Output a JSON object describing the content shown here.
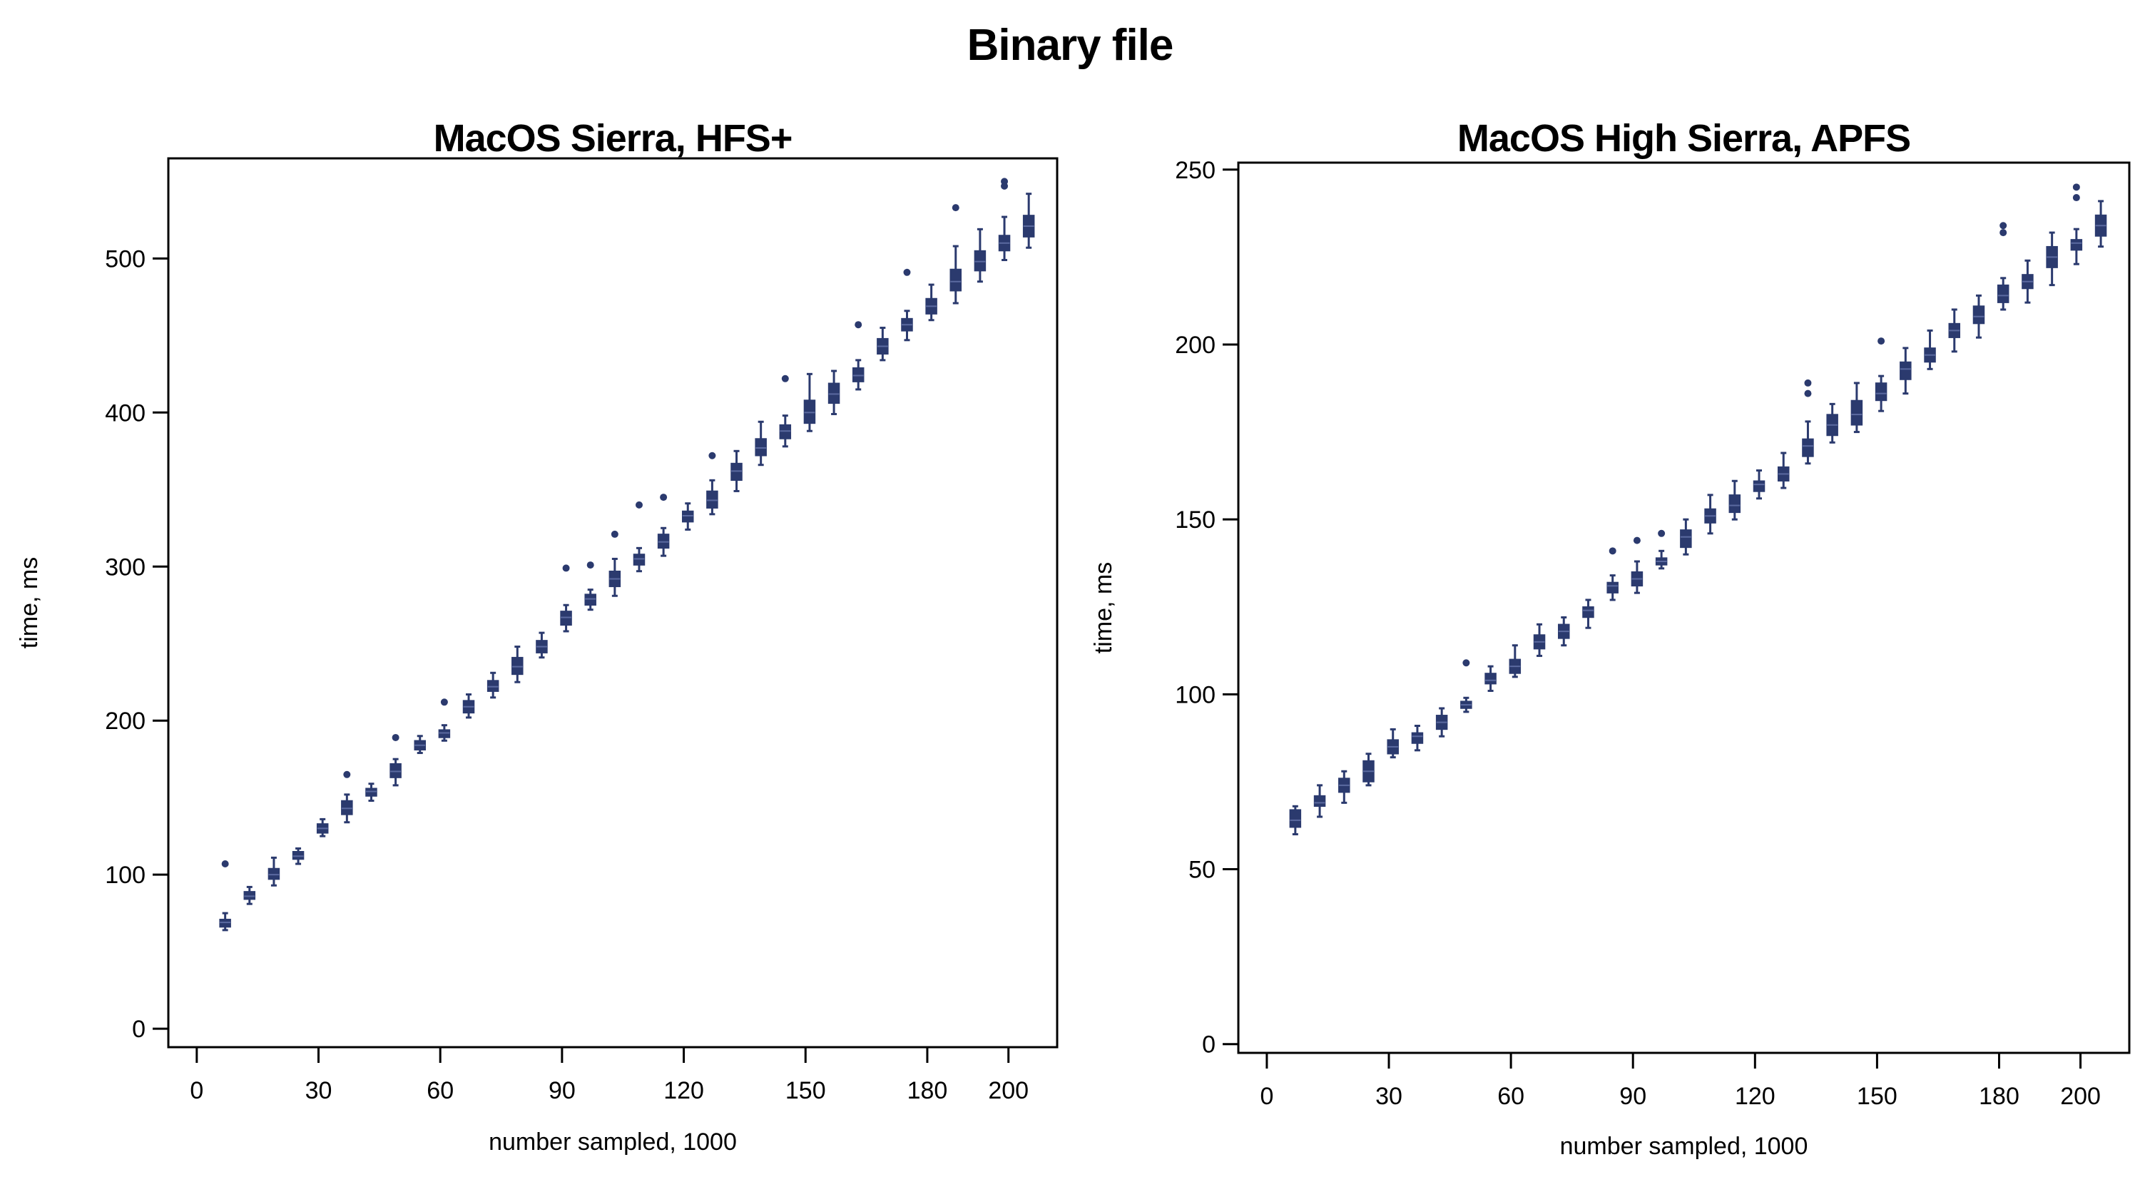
{
  "title": "Binary file",
  "chart_data": [
    {
      "type": "box",
      "title": "MacOS Sierra, HFS+",
      "xlabel": "number sampled, 1000",
      "ylabel": "time, ms",
      "xlim": [
        -7,
        212
      ],
      "ylim": [
        -12,
        565
      ],
      "xticks": [
        0,
        30,
        60,
        90,
        120,
        150,
        180,
        200
      ],
      "yticks": [
        0,
        100,
        200,
        300,
        400,
        500
      ],
      "color": "#2b3a6e",
      "boxes": [
        {
          "x": 7,
          "q1": 66,
          "median": 69,
          "q3": 71,
          "whisker_low": 64,
          "whisker_high": 75,
          "outliers": [
            107
          ]
        },
        {
          "x": 13,
          "q1": 84,
          "median": 86,
          "q3": 89,
          "whisker_low": 81,
          "whisker_high": 92,
          "outliers": []
        },
        {
          "x": 19,
          "q1": 97,
          "median": 100,
          "q3": 104,
          "whisker_low": 93,
          "whisker_high": 111,
          "outliers": []
        },
        {
          "x": 25,
          "q1": 110,
          "median": 112,
          "q3": 115,
          "whisker_low": 107,
          "whisker_high": 117,
          "outliers": []
        },
        {
          "x": 31,
          "q1": 127,
          "median": 130,
          "q3": 133,
          "whisker_low": 125,
          "whisker_high": 136,
          "outliers": []
        },
        {
          "x": 37,
          "q1": 139,
          "median": 143,
          "q3": 148,
          "whisker_low": 134,
          "whisker_high": 152,
          "outliers": [
            165
          ]
        },
        {
          "x": 43,
          "q1": 151,
          "median": 154,
          "q3": 156,
          "whisker_low": 148,
          "whisker_high": 159,
          "outliers": []
        },
        {
          "x": 49,
          "q1": 163,
          "median": 167,
          "q3": 172,
          "whisker_low": 158,
          "whisker_high": 175,
          "outliers": [
            189
          ]
        },
        {
          "x": 55,
          "q1": 181,
          "median": 184,
          "q3": 187,
          "whisker_low": 179,
          "whisker_high": 190,
          "outliers": []
        },
        {
          "x": 61,
          "q1": 189,
          "median": 192,
          "q3": 194,
          "whisker_low": 187,
          "whisker_high": 197,
          "outliers": [
            212
          ]
        },
        {
          "x": 67,
          "q1": 205,
          "median": 209,
          "q3": 213,
          "whisker_low": 202,
          "whisker_high": 217,
          "outliers": []
        },
        {
          "x": 73,
          "q1": 219,
          "median": 222,
          "q3": 226,
          "whisker_low": 215,
          "whisker_high": 231,
          "outliers": []
        },
        {
          "x": 79,
          "q1": 230,
          "median": 235,
          "q3": 241,
          "whisker_low": 225,
          "whisker_high": 248,
          "outliers": []
        },
        {
          "x": 85,
          "q1": 244,
          "median": 248,
          "q3": 252,
          "whisker_low": 241,
          "whisker_high": 257,
          "outliers": []
        },
        {
          "x": 91,
          "q1": 262,
          "median": 267,
          "q3": 271,
          "whisker_low": 258,
          "whisker_high": 275,
          "outliers": [
            299
          ]
        },
        {
          "x": 97,
          "q1": 275,
          "median": 279,
          "q3": 282,
          "whisker_low": 272,
          "whisker_high": 285,
          "outliers": [
            301
          ]
        },
        {
          "x": 103,
          "q1": 287,
          "median": 292,
          "q3": 297,
          "whisker_low": 281,
          "whisker_high": 305,
          "outliers": [
            321
          ]
        },
        {
          "x": 109,
          "q1": 301,
          "median": 305,
          "q3": 308,
          "whisker_low": 297,
          "whisker_high": 312,
          "outliers": [
            340
          ]
        },
        {
          "x": 115,
          "q1": 312,
          "median": 316,
          "q3": 321,
          "whisker_low": 307,
          "whisker_high": 325,
          "outliers": [
            345
          ]
        },
        {
          "x": 121,
          "q1": 329,
          "median": 333,
          "q3": 336,
          "whisker_low": 324,
          "whisker_high": 341,
          "outliers": []
        },
        {
          "x": 127,
          "q1": 338,
          "median": 343,
          "q3": 349,
          "whisker_low": 334,
          "whisker_high": 356,
          "outliers": [
            372
          ]
        },
        {
          "x": 133,
          "q1": 356,
          "median": 362,
          "q3": 367,
          "whisker_low": 349,
          "whisker_high": 375,
          "outliers": []
        },
        {
          "x": 139,
          "q1": 372,
          "median": 377,
          "q3": 383,
          "whisker_low": 366,
          "whisker_high": 394,
          "outliers": []
        },
        {
          "x": 145,
          "q1": 383,
          "median": 388,
          "q3": 392,
          "whisker_low": 378,
          "whisker_high": 398,
          "outliers": [
            422
          ]
        },
        {
          "x": 151,
          "q1": 393,
          "median": 400,
          "q3": 408,
          "whisker_low": 388,
          "whisker_high": 425,
          "outliers": []
        },
        {
          "x": 157,
          "q1": 406,
          "median": 412,
          "q3": 419,
          "whisker_low": 399,
          "whisker_high": 427,
          "outliers": []
        },
        {
          "x": 163,
          "q1": 420,
          "median": 424,
          "q3": 429,
          "whisker_low": 415,
          "whisker_high": 434,
          "outliers": [
            457
          ]
        },
        {
          "x": 169,
          "q1": 438,
          "median": 443,
          "q3": 448,
          "whisker_low": 434,
          "whisker_high": 455,
          "outliers": []
        },
        {
          "x": 175,
          "q1": 453,
          "median": 457,
          "q3": 461,
          "whisker_low": 447,
          "whisker_high": 466,
          "outliers": [
            491
          ]
        },
        {
          "x": 181,
          "q1": 464,
          "median": 469,
          "q3": 474,
          "whisker_low": 460,
          "whisker_high": 483,
          "outliers": []
        },
        {
          "x": 187,
          "q1": 479,
          "median": 485,
          "q3": 493,
          "whisker_low": 471,
          "whisker_high": 508,
          "outliers": [
            533
          ]
        },
        {
          "x": 193,
          "q1": 492,
          "median": 498,
          "q3": 505,
          "whisker_low": 485,
          "whisker_high": 519,
          "outliers": []
        },
        {
          "x": 199,
          "q1": 505,
          "median": 510,
          "q3": 515,
          "whisker_low": 499,
          "whisker_high": 527,
          "outliers": [
            547,
            550
          ]
        },
        {
          "x": 205,
          "q1": 514,
          "median": 521,
          "q3": 528,
          "whisker_low": 507,
          "whisker_high": 542,
          "outliers": []
        }
      ]
    },
    {
      "type": "box",
      "title": "MacOS High Sierra, APFS",
      "xlabel": "number sampled, 1000",
      "ylabel": "time, ms",
      "xlim": [
        -7,
        212
      ],
      "ylim": [
        -2.5,
        252
      ],
      "xticks": [
        0,
        30,
        60,
        90,
        120,
        150,
        180,
        200
      ],
      "yticks": [
        0,
        50,
        100,
        150,
        200,
        250
      ],
      "color": "#2b3a6e",
      "boxes": [
        {
          "x": 7,
          "q1": 62,
          "median": 64,
          "q3": 67,
          "whisker_low": 60,
          "whisker_high": 68,
          "outliers": []
        },
        {
          "x": 13,
          "q1": 68,
          "median": 69,
          "q3": 71,
          "whisker_low": 65,
          "whisker_high": 74,
          "outliers": []
        },
        {
          "x": 19,
          "q1": 72,
          "median": 74,
          "q3": 76,
          "whisker_low": 69,
          "whisker_high": 78,
          "outliers": []
        },
        {
          "x": 25,
          "q1": 75,
          "median": 78,
          "q3": 81,
          "whisker_low": 74,
          "whisker_high": 83,
          "outliers": []
        },
        {
          "x": 31,
          "q1": 83,
          "median": 85,
          "q3": 87,
          "whisker_low": 82,
          "whisker_high": 90,
          "outliers": []
        },
        {
          "x": 37,
          "q1": 86,
          "median": 88,
          "q3": 89,
          "whisker_low": 84,
          "whisker_high": 91,
          "outliers": []
        },
        {
          "x": 43,
          "q1": 90,
          "median": 92,
          "q3": 94,
          "whisker_low": 88,
          "whisker_high": 96,
          "outliers": []
        },
        {
          "x": 49,
          "q1": 96,
          "median": 97,
          "q3": 98,
          "whisker_low": 95,
          "whisker_high": 99,
          "outliers": [
            109
          ]
        },
        {
          "x": 55,
          "q1": 103,
          "median": 104,
          "q3": 106,
          "whisker_low": 101,
          "whisker_high": 108,
          "outliers": []
        },
        {
          "x": 61,
          "q1": 106,
          "median": 108,
          "q3": 110,
          "whisker_low": 105,
          "whisker_high": 114,
          "outliers": []
        },
        {
          "x": 67,
          "q1": 113,
          "median": 115,
          "q3": 117,
          "whisker_low": 111,
          "whisker_high": 120,
          "outliers": []
        },
        {
          "x": 73,
          "q1": 116,
          "median": 118,
          "q3": 120,
          "whisker_low": 114,
          "whisker_high": 122,
          "outliers": []
        },
        {
          "x": 79,
          "q1": 122,
          "median": 124,
          "q3": 125,
          "whisker_low": 119,
          "whisker_high": 127,
          "outliers": []
        },
        {
          "x": 85,
          "q1": 129,
          "median": 131,
          "q3": 132,
          "whisker_low": 127,
          "whisker_high": 134,
          "outliers": [
            141
          ]
        },
        {
          "x": 91,
          "q1": 131,
          "median": 133,
          "q3": 135,
          "whisker_low": 129,
          "whisker_high": 138,
          "outliers": [
            144
          ]
        },
        {
          "x": 97,
          "q1": 137,
          "median": 138,
          "q3": 139,
          "whisker_low": 136,
          "whisker_high": 141,
          "outliers": [
            146
          ]
        },
        {
          "x": 103,
          "q1": 142,
          "median": 145,
          "q3": 147,
          "whisker_low": 140,
          "whisker_high": 150,
          "outliers": []
        },
        {
          "x": 109,
          "q1": 149,
          "median": 151,
          "q3": 153,
          "whisker_low": 146,
          "whisker_high": 157,
          "outliers": []
        },
        {
          "x": 115,
          "q1": 152,
          "median": 154,
          "q3": 157,
          "whisker_low": 150,
          "whisker_high": 161,
          "outliers": []
        },
        {
          "x": 121,
          "q1": 158,
          "median": 160,
          "q3": 161,
          "whisker_low": 156,
          "whisker_high": 164,
          "outliers": []
        },
        {
          "x": 127,
          "q1": 161,
          "median": 163,
          "q3": 165,
          "whisker_low": 159,
          "whisker_high": 169,
          "outliers": []
        },
        {
          "x": 133,
          "q1": 168,
          "median": 171,
          "q3": 173,
          "whisker_low": 166,
          "whisker_high": 178,
          "outliers": [
            186,
            189
          ]
        },
        {
          "x": 139,
          "q1": 174,
          "median": 177,
          "q3": 180,
          "whisker_low": 172,
          "whisker_high": 183,
          "outliers": []
        },
        {
          "x": 145,
          "q1": 177,
          "median": 180,
          "q3": 184,
          "whisker_low": 175,
          "whisker_high": 189,
          "outliers": []
        },
        {
          "x": 151,
          "q1": 184,
          "median": 186,
          "q3": 189,
          "whisker_low": 181,
          "whisker_high": 191,
          "outliers": [
            201
          ]
        },
        {
          "x": 157,
          "q1": 190,
          "median": 193,
          "q3": 195,
          "whisker_low": 186,
          "whisker_high": 199,
          "outliers": []
        },
        {
          "x": 163,
          "q1": 195,
          "median": 197,
          "q3": 199,
          "whisker_low": 193,
          "whisker_high": 204,
          "outliers": []
        },
        {
          "x": 169,
          "q1": 202,
          "median": 204,
          "q3": 206,
          "whisker_low": 198,
          "whisker_high": 210,
          "outliers": []
        },
        {
          "x": 175,
          "q1": 206,
          "median": 208,
          "q3": 211,
          "whisker_low": 202,
          "whisker_high": 214,
          "outliers": []
        },
        {
          "x": 181,
          "q1": 212,
          "median": 214,
          "q3": 217,
          "whisker_low": 210,
          "whisker_high": 219,
          "outliers": [
            232,
            234
          ]
        },
        {
          "x": 187,
          "q1": 216,
          "median": 218,
          "q3": 220,
          "whisker_low": 212,
          "whisker_high": 224,
          "outliers": []
        },
        {
          "x": 193,
          "q1": 222,
          "median": 225,
          "q3": 228,
          "whisker_low": 217,
          "whisker_high": 232,
          "outliers": []
        },
        {
          "x": 199,
          "q1": 227,
          "median": 229,
          "q3": 230,
          "whisker_low": 223,
          "whisker_high": 233,
          "outliers": [
            242,
            245
          ]
        },
        {
          "x": 205,
          "q1": 231,
          "median": 234,
          "q3": 237,
          "whisker_low": 228,
          "whisker_high": 241,
          "outliers": []
        }
      ]
    }
  ]
}
